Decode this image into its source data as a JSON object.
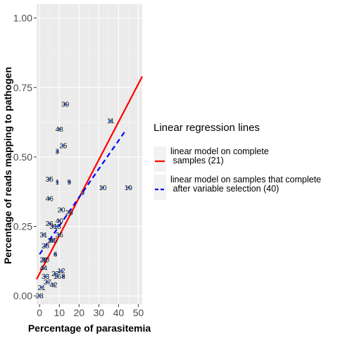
{
  "chart_data": {
    "type": "scatter",
    "xlabel": "Percentage of parasitemia",
    "ylabel": "Percentage of reads mapping to pathogen",
    "xlim": [
      -1.5,
      52
    ],
    "ylim": [
      -0.03,
      1.05
    ],
    "x_ticks": [
      0,
      10,
      20,
      30,
      40,
      50
    ],
    "y_ticks": [
      0.0,
      0.25,
      0.5,
      0.75,
      1.0
    ],
    "y_tick_labels": [
      "0.00",
      "0.25",
      "0.50",
      "0.75",
      "1.00"
    ],
    "grid": true,
    "points": [
      {
        "label": "39",
        "x": 13,
        "y": 0.69
      },
      {
        "label": "11",
        "x": 36,
        "y": 0.63
      },
      {
        "label": "48",
        "x": 10,
        "y": 0.6
      },
      {
        "label": "25",
        "x": 12,
        "y": 0.54
      },
      {
        "label": "3",
        "x": 9,
        "y": 0.52
      },
      {
        "label": "35",
        "x": 5,
        "y": 0.42
      },
      {
        "label": "1",
        "x": 9,
        "y": 0.41
      },
      {
        "label": "9",
        "x": 15,
        "y": 0.41
      },
      {
        "label": "10",
        "x": 32,
        "y": 0.39
      },
      {
        "label": "19",
        "x": 45,
        "y": 0.39
      },
      {
        "label": "7",
        "x": 22,
        "y": 0.37
      },
      {
        "label": "46",
        "x": 5,
        "y": 0.35
      },
      {
        "label": "20",
        "x": 11,
        "y": 0.31
      },
      {
        "label": "29",
        "x": 15,
        "y": 0.3
      },
      {
        "label": "40",
        "x": 10,
        "y": 0.27
      },
      {
        "label": "26",
        "x": 5,
        "y": 0.26
      },
      {
        "label": "31",
        "x": 7,
        "y": 0.25
      },
      {
        "label": "15",
        "x": 9,
        "y": 0.25
      },
      {
        "label": "31",
        "x": 2,
        "y": 0.22
      },
      {
        "label": "36",
        "x": 10,
        "y": 0.22
      },
      {
        "label": "24",
        "x": 6,
        "y": 0.2
      },
      {
        "label": "45",
        "x": 7,
        "y": 0.2
      },
      {
        "label": "28",
        "x": 3,
        "y": 0.18
      },
      {
        "label": "6",
        "x": 8,
        "y": 0.15
      },
      {
        "label": "22",
        "x": 2,
        "y": 0.13
      },
      {
        "label": "30",
        "x": 3,
        "y": 0.13
      },
      {
        "label": "44",
        "x": 2,
        "y": 0.1
      },
      {
        "label": "12",
        "x": 11,
        "y": 0.09
      },
      {
        "label": "27",
        "x": 8,
        "y": 0.08
      },
      {
        "label": "33",
        "x": 3,
        "y": 0.07
      },
      {
        "label": "16",
        "x": 9,
        "y": 0.07
      },
      {
        "label": "8",
        "x": 12,
        "y": 0.07
      },
      {
        "label": "37",
        "x": 4,
        "y": 0.05
      },
      {
        "label": "42",
        "x": 7,
        "y": 0.04
      },
      {
        "label": "21",
        "x": 1,
        "y": 0.03
      },
      {
        "label": "23",
        "x": 0,
        "y": 0.0
      }
    ],
    "series": [
      {
        "name": "linear model on complete\n samples (21)",
        "color": "#ff0000",
        "dash": "solid",
        "x": [
          -1.5,
          52
        ],
        "y": [
          0.06,
          0.79
        ]
      },
      {
        "name": "linear model on samples that complete\n after variable selection (40)",
        "color": "#0000ff",
        "dash": "dashed",
        "x": [
          0,
          44
        ],
        "y": [
          0.15,
          0.6
        ]
      }
    ],
    "legend": {
      "title": "Linear regression lines",
      "position": "right",
      "entries": [
        {
          "lines": [
            "linear model on complete",
            " samples (21)"
          ],
          "color": "#ff0000",
          "dash": "solid"
        },
        {
          "lines": [
            "linear model on samples that complete",
            " after variable selection (40)"
          ],
          "color": "#0000ff",
          "dash": "dashed"
        }
      ]
    },
    "colors": {
      "panel_bg": "#ebebeb",
      "grid_major": "#ffffff",
      "point": "#3a6fd8"
    }
  }
}
